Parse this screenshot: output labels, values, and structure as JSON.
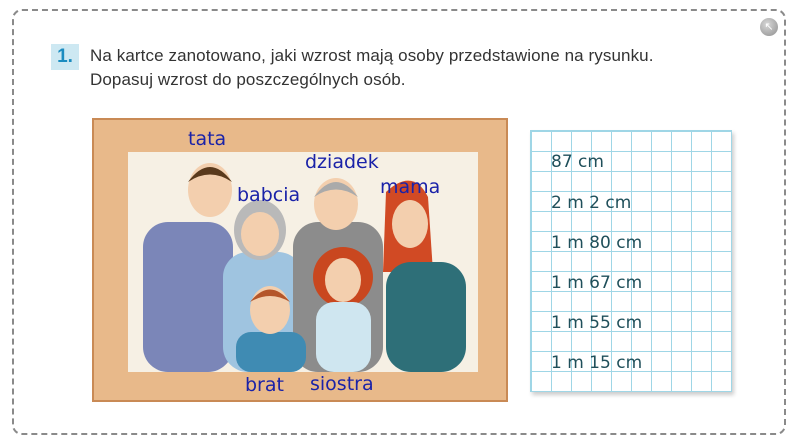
{
  "exercise": {
    "number": "1.",
    "lines": [
      "Na kartce zanotowano, jaki wzrost mają osoby przedstawione na rysunku.",
      "Dopasuj wzrost do poszczególnych osób."
    ]
  },
  "corner_button_icon": "arrow-up-left-icon",
  "picture": {
    "labels": {
      "tata": "tata",
      "babcia": "babcia",
      "dziadek": "dziadek",
      "mama": "mama",
      "brat": "brat",
      "siostra": "siostra"
    }
  },
  "heights": [
    "87 cm",
    "2 m 2 cm",
    "1 m 80 cm",
    "1 m 67 cm",
    "1 m 55 cm",
    "1 m 15 cm"
  ],
  "colors": {
    "accent": "#1b8cc0",
    "label_text": "#1a22a8",
    "grid_line": "#9fd6e6",
    "height_text": "#1f4f5a"
  }
}
